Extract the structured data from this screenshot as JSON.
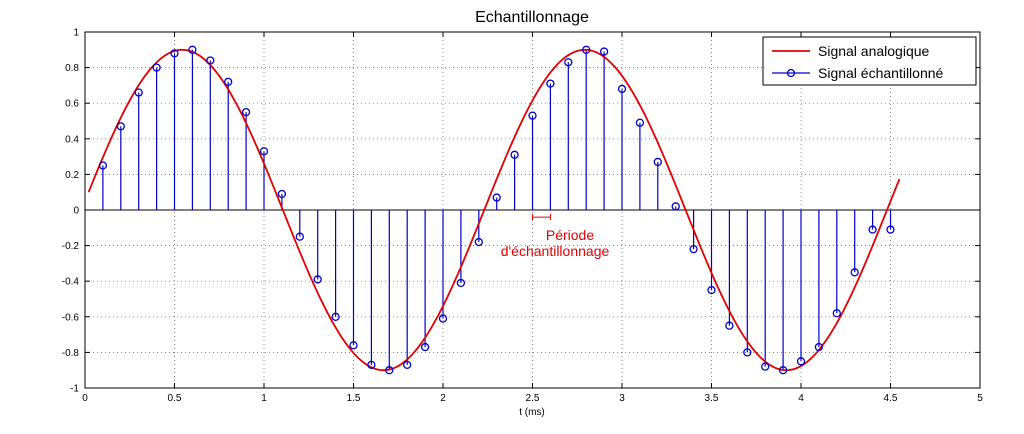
{
  "chart_data": {
    "type": "line",
    "title": "Echantillonnage",
    "xlabel": "t (ms)",
    "ylabel": "",
    "xlim": [
      0,
      5
    ],
    "ylim": [
      -1,
      1
    ],
    "grid": true,
    "legend_position": "top-right",
    "x_ticks": [
      "0",
      "0.5",
      "1",
      "1.5",
      "2",
      "2.5",
      "3",
      "3.5",
      "4",
      "4.5",
      "5"
    ],
    "y_ticks": [
      "-1",
      "-0.8",
      "-0.6",
      "-0.4",
      "-0.2",
      "0",
      "0.2",
      "0.4",
      "0.6",
      "0.8",
      "1"
    ],
    "analog": {
      "name": "Signal analogique",
      "color": "#e00000",
      "amplitude": 0.9,
      "frequency_khz": 0.4444,
      "phase_rad": 0.0556,
      "t_start": 0.02,
      "t_end": 4.55
    },
    "sampled": {
      "name": "Signal échantillonné",
      "color": "#0000c8",
      "x": [
        0.1,
        0.2,
        0.3,
        0.4,
        0.5,
        0.6,
        0.7,
        0.8,
        0.9,
        1.0,
        1.1,
        1.2,
        1.3,
        1.4,
        1.5,
        1.6,
        1.7,
        1.8,
        1.9,
        2.0,
        2.1,
        2.2,
        2.3,
        2.4,
        2.5,
        2.6,
        2.7,
        2.8,
        2.9,
        3.0,
        3.1,
        3.2,
        3.3,
        3.4,
        3.5,
        3.6,
        3.7,
        3.8,
        3.9,
        4.0,
        4.1,
        4.2,
        4.3,
        4.4,
        4.5
      ],
      "y": [
        0.25,
        0.47,
        0.66,
        0.8,
        0.88,
        0.9,
        0.84,
        0.72,
        0.55,
        0.33,
        0.09,
        -0.15,
        -0.39,
        -0.6,
        -0.76,
        -0.87,
        -0.9,
        -0.87,
        -0.77,
        -0.61,
        -0.41,
        -0.18,
        0.07,
        0.31,
        0.53,
        0.71,
        0.83,
        0.9,
        0.89,
        0.68,
        0.49,
        0.27,
        0.02,
        -0.22,
        -0.45,
        -0.65,
        -0.8,
        -0.88,
        -0.9,
        -0.85,
        -0.77,
        -0.58,
        -0.35,
        -0.11,
        -0.11
      ]
    },
    "annotation": {
      "lines": [
        "Période",
        "d'échantillonnage"
      ],
      "color": "#e00000",
      "x_from": 2.5,
      "x_to": 2.6,
      "y": -0.04
    }
  }
}
